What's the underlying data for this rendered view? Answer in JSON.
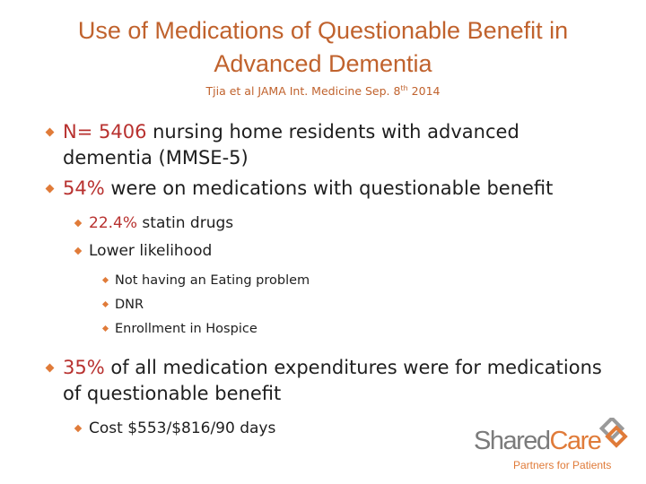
{
  "title": "Use of Medications of Questionable Benefit in Advanced Dementia",
  "subtitle": {
    "before": "Tjia et al JAMA Int. Medicine Sep. 8",
    "sup": "th",
    "after": " 2014"
  },
  "bullets": [
    {
      "level": 1,
      "runs": [
        {
          "text": "N= 5406",
          "color": "#b8312f"
        },
        {
          "text": " nursing home residents with advanced dementia  (MMSE-5)"
        }
      ]
    },
    {
      "level": 1,
      "runs": [
        {
          "text": "54%",
          "color": "#b8312f"
        },
        {
          "text": " were on medications with questionable benefit"
        }
      ]
    },
    {
      "level": 2,
      "runs": [
        {
          "text": "22.4%",
          "color": "#b8312f"
        },
        {
          "text": " statin drugs"
        }
      ]
    },
    {
      "level": 2,
      "runs": [
        {
          "text": "Lower likelihood"
        }
      ]
    },
    {
      "level": 3,
      "runs": [
        {
          "text": "Not having an Eating problem"
        }
      ]
    },
    {
      "level": 3,
      "runs": [
        {
          "text": "DNR"
        }
      ]
    },
    {
      "level": 3,
      "runs": [
        {
          "text": "Enrollment in Hospice"
        }
      ]
    },
    {
      "level": 1,
      "runs": [
        {
          "text": "35%",
          "color": "#b8312f"
        },
        {
          "text": " of all medication expenditures were for medications of questionable benefit"
        }
      ]
    },
    {
      "level": 2,
      "runs": [
        {
          "text": "Cost $553/$816/90 days"
        }
      ]
    }
  ],
  "logo": {
    "part1": "Shared",
    "part2": "Care",
    "tagline": "Partners for Patients"
  }
}
